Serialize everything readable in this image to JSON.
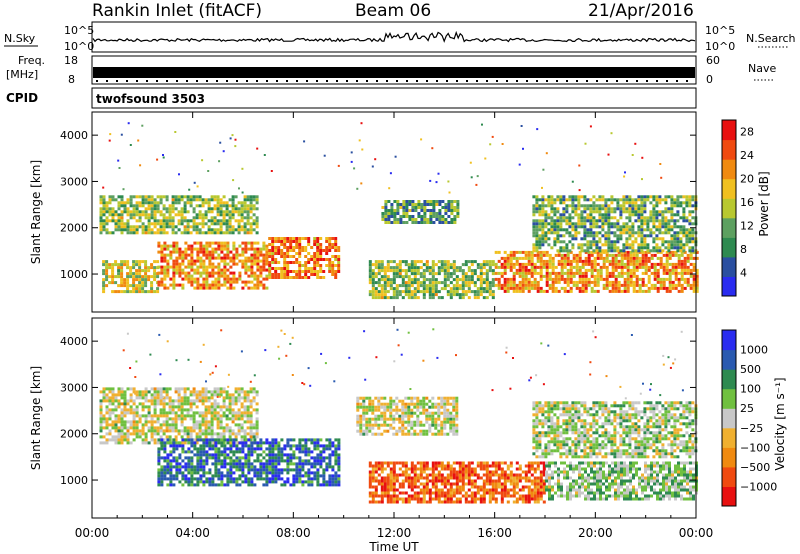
{
  "header": {
    "station": "Rankin Inlet (fitACF)",
    "beam": "Beam 06",
    "date": "21/Apr/2016"
  },
  "strip_labels": {
    "nsky": "N.Sky",
    "nsearch": "N.Search",
    "freq_line1": "Freq.",
    "freq_line2": "[MHz]",
    "nave": "Nave",
    "cpid": "CPID",
    "cpid_value": "twofsound 3503",
    "noise_ticks": [
      "10^5",
      "10^0"
    ],
    "freq_ticks": [
      "18",
      "8"
    ],
    "nave_ticks": [
      "60",
      "0"
    ]
  },
  "colors": {
    "power_scale": [
      "#2a2cf0",
      "#2a4fa0",
      "#2e8a50",
      "#5da060",
      "#b8c830",
      "#f0c020",
      "#f08a10",
      "#f04a10",
      "#e81010"
    ],
    "velocity_scale": [
      "#e81010",
      "#f04a10",
      "#f08a10",
      "#f0b030",
      "#c8c8c8",
      "#70c040",
      "#2e8a50",
      "#2a5ab0",
      "#2a2cf0"
    ]
  },
  "chart_data": [
    {
      "type": "heatmap",
      "title": "",
      "xlabel": "",
      "ylabel": "Slant Range [km]",
      "x_ticks": [
        "00:00",
        "04:00",
        "08:00",
        "12:00",
        "16:00",
        "20:00",
        "00:00"
      ],
      "y_ticks": [
        1000,
        2000,
        3000,
        4000
      ],
      "ylim": [
        180,
        4500
      ],
      "xlim_hours": [
        0,
        24
      ],
      "colorbar": {
        "label": "Power [dB]",
        "ticks": [
          4,
          8,
          12,
          16,
          20,
          24,
          28
        ],
        "range": [
          0,
          30
        ]
      },
      "echo_regions": [
        {
          "t_start": 0.4,
          "t_end": 2.6,
          "range_min": 600,
          "range_max": 1300,
          "level": 0.55
        },
        {
          "t_start": 2.6,
          "t_end": 7.0,
          "range_min": 700,
          "range_max": 1700,
          "level": 0.7
        },
        {
          "t_start": 7.0,
          "t_end": 9.8,
          "range_min": 900,
          "range_max": 1800,
          "level": 0.75
        },
        {
          "t_start": 11.0,
          "t_end": 16.0,
          "range_min": 500,
          "range_max": 1300,
          "level": 0.45
        },
        {
          "t_start": 16.0,
          "t_end": 24.0,
          "range_min": 600,
          "range_max": 1500,
          "level": 0.7
        },
        {
          "t_start": 0.3,
          "t_end": 6.5,
          "range_min": 1900,
          "range_max": 2700,
          "level": 0.45
        },
        {
          "t_start": 11.5,
          "t_end": 14.5,
          "range_min": 2100,
          "range_max": 2600,
          "level": 0.35
        },
        {
          "t_start": 17.5,
          "t_end": 24.0,
          "range_min": 1500,
          "range_max": 2700,
          "level": 0.4
        }
      ]
    },
    {
      "type": "heatmap",
      "title": "",
      "xlabel": "Time UT",
      "ylabel": "Slant Range [km]",
      "x_ticks": [
        "00:00",
        "04:00",
        "08:00",
        "12:00",
        "16:00",
        "20:00",
        "00:00"
      ],
      "y_ticks": [
        1000,
        2000,
        3000,
        4000
      ],
      "ylim": [
        180,
        4500
      ],
      "xlim_hours": [
        0,
        24
      ],
      "colorbar": {
        "label": "Velocity [m s⁻¹]",
        "ticks": [
          "1000",
          "500",
          "100",
          "25",
          "−25",
          "−100",
          "−500",
          "−1000"
        ]
      },
      "echo_regions": [
        {
          "t_start": 0.3,
          "t_end": 6.5,
          "range_min": 1800,
          "range_max": 3000,
          "level": 0.5
        },
        {
          "t_start": 10.5,
          "t_end": 14.5,
          "range_min": 2000,
          "range_max": 2800,
          "level": 0.5
        },
        {
          "t_start": 2.6,
          "t_end": 9.8,
          "range_min": 900,
          "range_max": 1900,
          "level": 0.8
        },
        {
          "t_start": 11.0,
          "t_end": 18.0,
          "range_min": 500,
          "range_max": 1400,
          "level": 0.2
        },
        {
          "t_start": 18.0,
          "t_end": 24.0,
          "range_min": 600,
          "range_max": 1400,
          "level": 0.6
        },
        {
          "t_start": 17.5,
          "t_end": 24.0,
          "range_min": 1500,
          "range_max": 2700,
          "level": 0.55
        }
      ]
    }
  ]
}
